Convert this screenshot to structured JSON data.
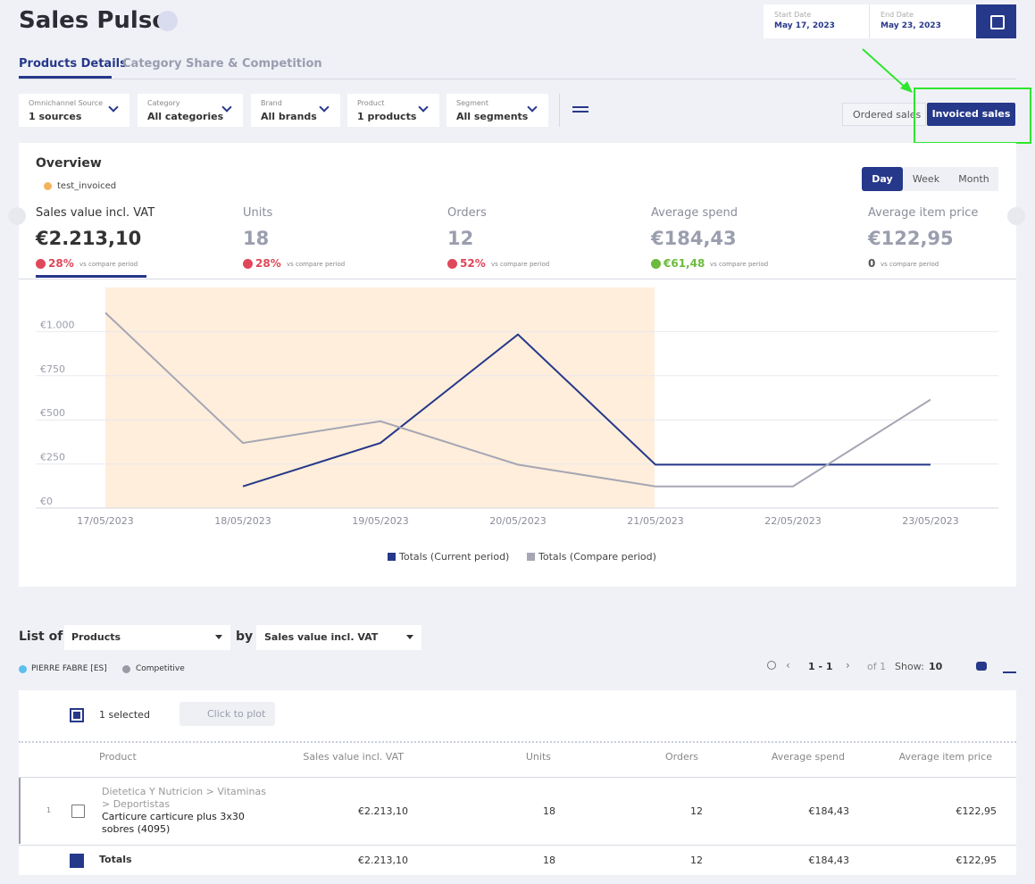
{
  "header": {
    "title": "Sales Pulse",
    "start_label": "Start Date",
    "start": "May 17, 2023",
    "end_label": "End Date",
    "end": "May 23, 2023"
  },
  "tabs": [
    "Products Details",
    "Category Share & Competition"
  ],
  "filters": [
    {
      "label": "Omnichannel Source",
      "value": "1 sources"
    },
    {
      "label": "Category",
      "value": "All categories"
    },
    {
      "label": "Brand",
      "value": "All brands"
    },
    {
      "label": "Product",
      "value": "1 products"
    },
    {
      "label": "Segment",
      "value": "All segments"
    }
  ],
  "sales_toggle": [
    "Ordered sales",
    "Invoiced sales"
  ],
  "overview": {
    "title": "Overview",
    "source": "test_invoiced",
    "periods": [
      "Day",
      "Week",
      "Month"
    ],
    "kpis": [
      {
        "label": "Sales value incl. VAT",
        "value": "€2.213,10",
        "change": "28%",
        "trend": "down",
        "note": "vs compare period"
      },
      {
        "label": "Units",
        "value": "18",
        "change": "28%",
        "trend": "down",
        "note": "vs compare period"
      },
      {
        "label": "Orders",
        "value": "12",
        "change": "52%",
        "trend": "down",
        "note": "vs compare period"
      },
      {
        "label": "Average spend",
        "value": "€184,43",
        "change": "€61,48",
        "trend": "up",
        "note": "vs compare period"
      },
      {
        "label": "Average item price",
        "value": "€122,95",
        "change": "0",
        "note": "vs compare period"
      }
    ],
    "chart": {
      "type": "line",
      "categories": [
        "17/05/2023",
        "18/05/2023",
        "19/05/2023",
        "20/05/2023",
        "21/05/2023",
        "22/05/2023",
        "23/05/2023"
      ],
      "series": [
        {
          "name": "Totals (Current period)",
          "color": "#26388a",
          "values": [
            null,
            123,
            369,
            984,
            246,
            246,
            246
          ]
        },
        {
          "name": "Totals (Compare period)",
          "color": "#a6a6b4",
          "values": [
            1107,
            369,
            492,
            246,
            123,
            123,
            615
          ]
        }
      ],
      "ylim": [
        0,
        1250
      ],
      "yticks": [
        {
          "value": 0,
          "label": "€0"
        },
        {
          "value": 250,
          "label": "€250"
        },
        {
          "value": 500,
          "label": "€500"
        },
        {
          "value": 750,
          "label": "€750"
        },
        {
          "value": 1000,
          "label": "€1.000"
        }
      ],
      "grid": true
    }
  },
  "list": {
    "label": "List of",
    "dimension": "Products",
    "by": "by",
    "metric": "Sales value incl. VAT",
    "legend": [
      "PIERRE FABRE [ES]",
      "Competitive"
    ],
    "pagination": {
      "range": "1 - 1",
      "of": "of 1",
      "show": "Show:",
      "size": "10"
    },
    "selected": "1 selected",
    "plot": "Click to plot"
  },
  "table": {
    "columns": [
      "Product",
      "Sales value incl. VAT",
      "Units",
      "Orders",
      "Average spend",
      "Average item price"
    ],
    "rows": [
      {
        "index": "1",
        "category": "Dietetica Y Nutricion > Vitaminas > Deportistas",
        "product": "Carticure carticure plus 3x30 sobres (4095)",
        "cells": [
          "€2.213,10",
          "18",
          "12",
          "€184,43",
          "€122,95"
        ]
      }
    ],
    "totals": {
      "label": "Totals",
      "cells": [
        "€2.213,10",
        "18",
        "12",
        "€184,43",
        "€122,95"
      ]
    }
  }
}
